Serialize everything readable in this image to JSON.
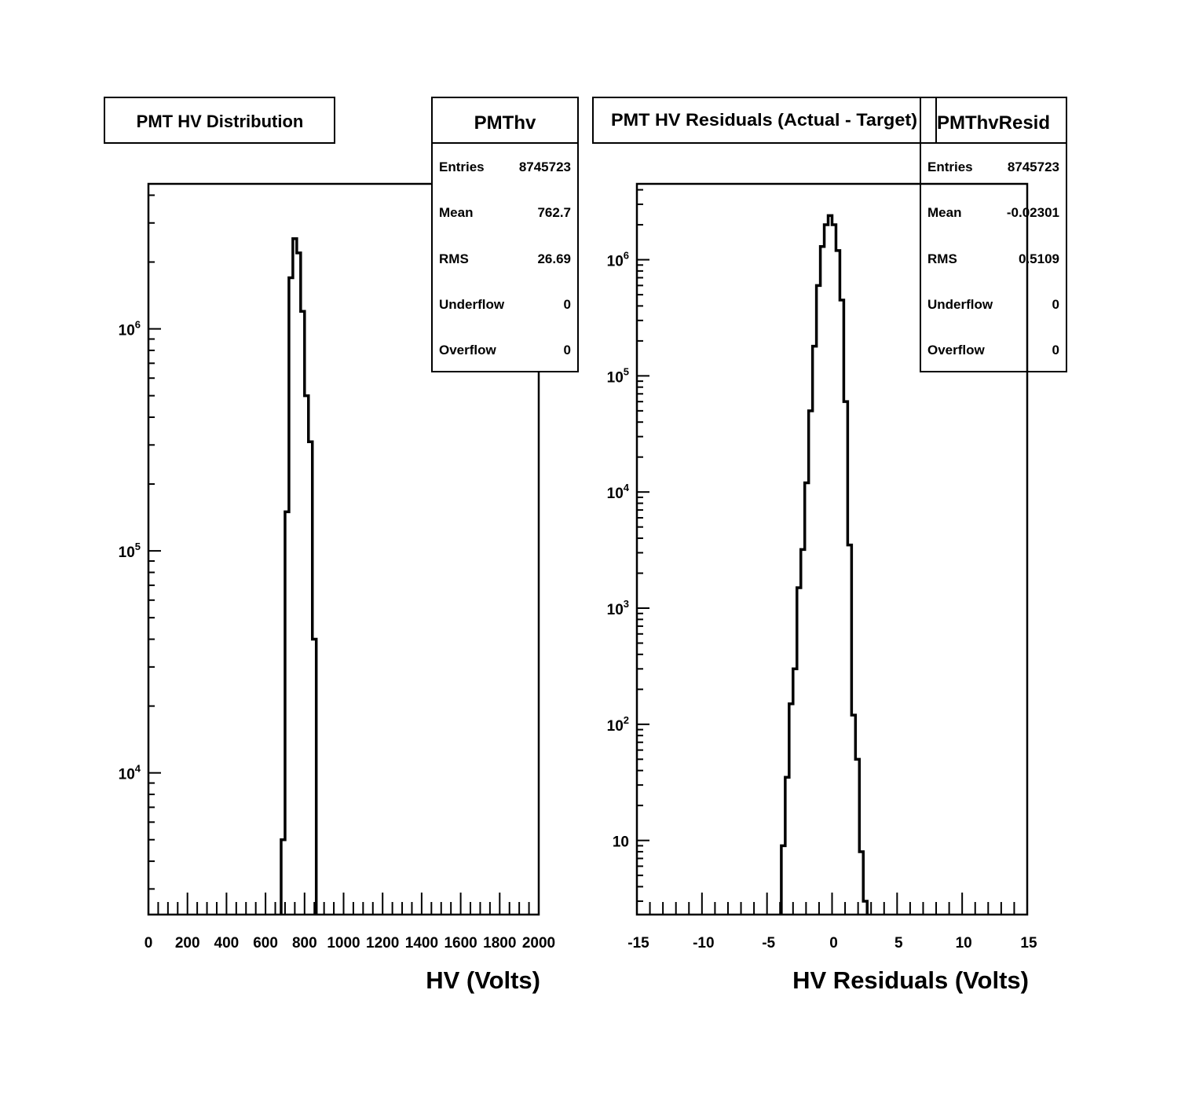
{
  "chart_data": [
    {
      "type": "histogram",
      "title": "PMT HV Distribution",
      "xlabel": "HV (Volts)",
      "ylabel": "",
      "xlim": [
        0,
        2000
      ],
      "y_scale": "log",
      "ylim": [
        2300,
        4500000
      ],
      "x_tick_labels": [
        "0",
        "200",
        "400",
        "600",
        "800",
        "1000",
        "1200",
        "1400",
        "1600",
        "1800",
        "2000"
      ],
      "y_tick_labels": [
        {
          "value": 10000,
          "base": "10",
          "exp": "4"
        },
        {
          "value": 100000,
          "base": "10",
          "exp": "5"
        },
        {
          "value": 1000000,
          "base": "10",
          "exp": "6"
        }
      ],
      "stats": {
        "name": "PMThv",
        "rows": [
          {
            "label": "Entries",
            "value": "8745723"
          },
          {
            "label": "Mean",
            "value": "762.7"
          },
          {
            "label": "RMS",
            "value": "26.69"
          },
          {
            "label": "Underflow",
            "value": "0"
          },
          {
            "label": "Overflow",
            "value": "0"
          }
        ]
      },
      "bins": {
        "edges": [
          680,
          700,
          720,
          740,
          760,
          780,
          800,
          820,
          840,
          860
        ],
        "counts": [
          5000,
          150000,
          1700000,
          2550000,
          2200000,
          1200000,
          500000,
          310000,
          40000
        ]
      }
    },
    {
      "type": "histogram",
      "title": "PMT HV Residuals (Actual - Target)",
      "xlabel": "HV Residuals (Volts)",
      "ylabel": "",
      "xlim": [
        -15,
        15
      ],
      "y_scale": "log",
      "ylim": [
        2.3,
        4500000
      ],
      "x_tick_labels": [
        "-15",
        "-10",
        "-5",
        "0",
        "5",
        "10",
        "15"
      ],
      "y_tick_labels": [
        {
          "value": 10,
          "base": "10",
          "exp": ""
        },
        {
          "value": 100,
          "base": "10",
          "exp": "2"
        },
        {
          "value": 1000,
          "base": "10",
          "exp": "3"
        },
        {
          "value": 10000,
          "base": "10",
          "exp": "4"
        },
        {
          "value": 100000,
          "base": "10",
          "exp": "5"
        },
        {
          "value": 1000000,
          "base": "10",
          "exp": "6"
        }
      ],
      "stats": {
        "name": "PMThvResid",
        "rows": [
          {
            "label": "Entries",
            "value": "8745723"
          },
          {
            "label": "Mean",
            "value": "-0.02301"
          },
          {
            "label": "RMS",
            "value": "0.5109"
          },
          {
            "label": "Underflow",
            "value": "0"
          },
          {
            "label": "Overflow",
            "value": "0"
          }
        ]
      },
      "bins": {
        "edges": [
          -3.9,
          -3.6,
          -3.3,
          -3.0,
          -2.7,
          -2.4,
          -2.1,
          -1.8,
          -1.5,
          -1.2,
          -0.9,
          -0.6,
          -0.3,
          0.0,
          0.3,
          0.6,
          0.9,
          1.2,
          1.5,
          1.8,
          2.1,
          2.4,
          2.7
        ],
        "counts": [
          9,
          35,
          150,
          300,
          1500,
          3200,
          12000,
          50000,
          180000,
          600000,
          1300000,
          2000000,
          2400000,
          2000000,
          1200000,
          450000,
          60000,
          3500,
          120,
          50,
          8,
          3
        ]
      }
    }
  ]
}
